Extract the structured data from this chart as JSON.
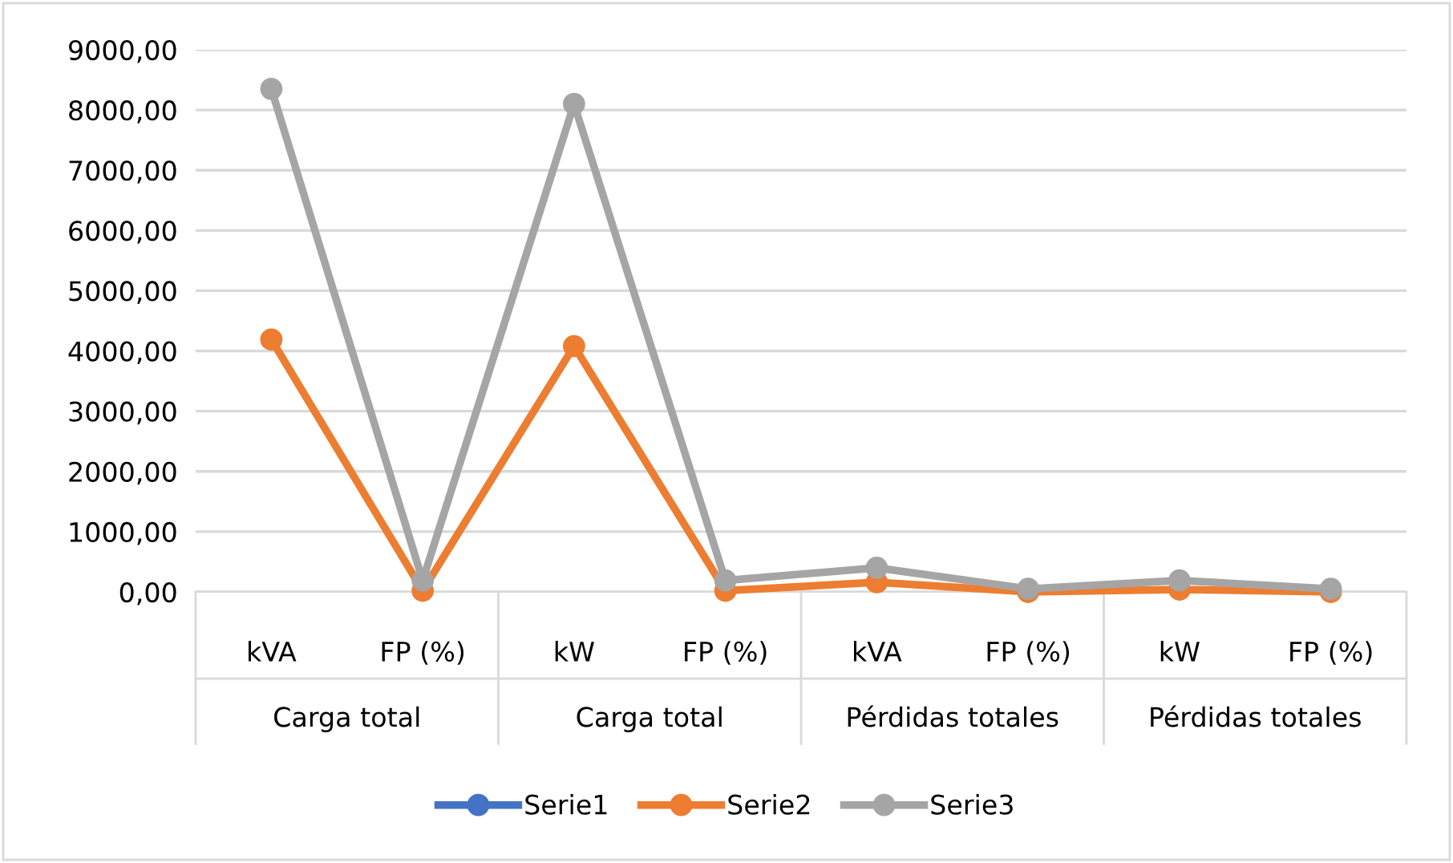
{
  "chart_data": {
    "type": "line",
    "categories": [
      "kVA",
      "FP (%)",
      "kW",
      "FP (%)",
      "kVA",
      "FP (%)",
      "kW",
      "FP (%)"
    ],
    "annotations": [
      "Carga total",
      "Carga total",
      "Pérdidas totales",
      "Pérdidas totales"
    ],
    "series": [
      {
        "name": "Serie1",
        "color": "#4472c4",
        "values": [
          null,
          null,
          null,
          null,
          null,
          null,
          null,
          null
        ]
      },
      {
        "name": "Serie2",
        "color": "#ed7d31",
        "values": [
          4190,
          20,
          4080,
          20,
          160,
          0,
          40,
          0
        ]
      },
      {
        "name": "Serie3",
        "color": "#a5a5a5",
        "values": [
          8350,
          190,
          8100,
          190,
          400,
          50,
          190,
          50
        ]
      }
    ],
    "ylim": [
      0,
      9000
    ],
    "yticks": [
      {
        "value": 0,
        "label": "0,00"
      },
      {
        "value": 1000,
        "label": "1000,00"
      },
      {
        "value": 2000,
        "label": "2000,00"
      },
      {
        "value": 3000,
        "label": "3000,00"
      },
      {
        "value": 4000,
        "label": "4000,00"
      },
      {
        "value": 5000,
        "label": "5000,00"
      },
      {
        "value": 6000,
        "label": "6000,00"
      },
      {
        "value": 7000,
        "label": "7000,00"
      },
      {
        "value": 8000,
        "label": "8000,00"
      },
      {
        "value": 9000,
        "label": "9000,00"
      }
    ],
    "grid": "y",
    "legend": "bottom",
    "marker": "circle",
    "line_style": "solid"
  }
}
